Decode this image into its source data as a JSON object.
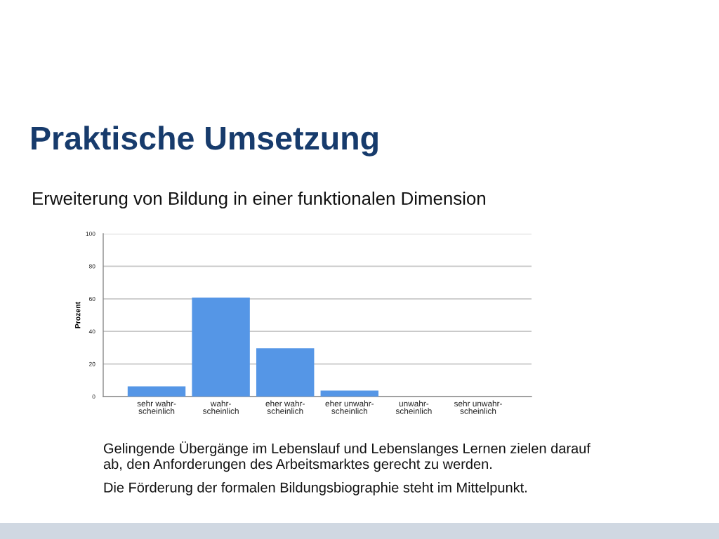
{
  "chart_data": {
    "type": "bar",
    "title": "Praktische Umsetzung",
    "subtitle": "Erweiterung von Bildung in einer funktionalen Dimension",
    "ylabel": "Prozent",
    "categories": [
      "sehr wahr-\nscheinlich",
      "wahr-\nscheinlich",
      "eher wahr-\nscheinlich",
      "eher unwahr-\nscheinlich",
      "unwahr-\nscheinlich",
      "sehr unwahr-\nscheinlich"
    ],
    "values": [
      6.3,
      60.8,
      29.6,
      3.7,
      0,
      0
    ],
    "color": "#5596e6",
    "ylim": [
      0,
      100
    ],
    "yticks": [
      0,
      20,
      40,
      60,
      80,
      100
    ],
    "grid": "y",
    "annotations": [
      "Gelingende Übergänge im Lebenslauf und Lebenslanges Lernen zielen darauf ab, den Anforderungen des Arbeitsmarktes gerecht zu werden.",
      "Die Förderung der formalen Bildungsbiographie steht im Mittelpunkt."
    ]
  }
}
